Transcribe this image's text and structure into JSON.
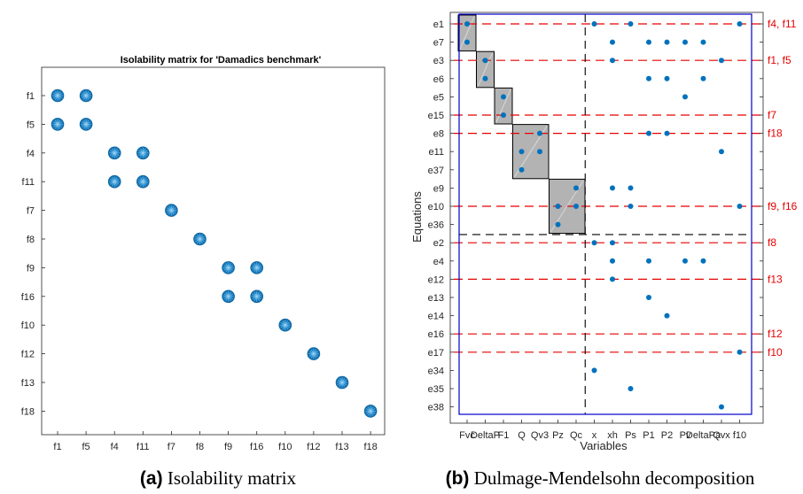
{
  "chart_data": [
    {
      "type": "scatter",
      "title": "Isolability matrix for 'Damadics benchmark'",
      "x_categories": [
        "f1",
        "f5",
        "f4",
        "f11",
        "f7",
        "f8",
        "f9",
        "f16",
        "f10",
        "f12",
        "f13",
        "f18"
      ],
      "y_categories": [
        "f1",
        "f5",
        "f4",
        "f11",
        "f7",
        "f8",
        "f9",
        "f16",
        "f10",
        "f12",
        "f13",
        "f18"
      ],
      "points": [
        [
          "f1",
          "f1"
        ],
        [
          "f5",
          "f1"
        ],
        [
          "f1",
          "f5"
        ],
        [
          "f5",
          "f5"
        ],
        [
          "f4",
          "f4"
        ],
        [
          "f11",
          "f4"
        ],
        [
          "f4",
          "f11"
        ],
        [
          "f11",
          "f11"
        ],
        [
          "f7",
          "f7"
        ],
        [
          "f8",
          "f8"
        ],
        [
          "f9",
          "f9"
        ],
        [
          "f16",
          "f9"
        ],
        [
          "f9",
          "f16"
        ],
        [
          "f16",
          "f16"
        ],
        [
          "f10",
          "f10"
        ],
        [
          "f12",
          "f12"
        ],
        [
          "f13",
          "f13"
        ],
        [
          "f18",
          "f18"
        ]
      ],
      "caption_label": "(a)",
      "caption_text": " Isolability matrix"
    },
    {
      "type": "scatter",
      "xlabel": "Variables",
      "ylabel": "Equations",
      "x_tick_labels": [
        "Fvc",
        "DeltaP",
        "F1",
        "Q",
        "Qv3",
        "Pz",
        "Qc",
        "x",
        "xh",
        "Ps",
        "P1",
        "P2",
        "Pv",
        "DeltaPa",
        "Qvx",
        "f10"
      ],
      "y_categories": [
        "e1",
        "e7",
        "e3",
        "e6",
        "e5",
        "e15",
        "e8",
        "e11",
        "e37",
        "e9",
        "e10",
        "e36",
        "e2",
        "e4",
        "e12",
        "e13",
        "e14",
        "e16",
        "e17",
        "e34",
        "e35",
        "e38"
      ],
      "points": [
        [
          0,
          "e1"
        ],
        [
          7,
          "e1"
        ],
        [
          9,
          "e1"
        ],
        [
          15,
          "e1"
        ],
        [
          0,
          "e7"
        ],
        [
          8,
          "e7"
        ],
        [
          10,
          "e7"
        ],
        [
          11,
          "e7"
        ],
        [
          12,
          "e7"
        ],
        [
          13,
          "e7"
        ],
        [
          1,
          "e3"
        ],
        [
          8,
          "e3"
        ],
        [
          14,
          "e3"
        ],
        [
          1,
          "e6"
        ],
        [
          10,
          "e6"
        ],
        [
          11,
          "e6"
        ],
        [
          13,
          "e6"
        ],
        [
          2,
          "e5"
        ],
        [
          12,
          "e5"
        ],
        [
          2,
          "e15"
        ],
        [
          4,
          "e8"
        ],
        [
          10,
          "e8"
        ],
        [
          11,
          "e8"
        ],
        [
          3,
          "e11"
        ],
        [
          4,
          "e11"
        ],
        [
          14,
          "e11"
        ],
        [
          3,
          "e37"
        ],
        [
          6,
          "e9"
        ],
        [
          8,
          "e9"
        ],
        [
          9,
          "e9"
        ],
        [
          5,
          "e10"
        ],
        [
          6,
          "e10"
        ],
        [
          9,
          "e10"
        ],
        [
          15,
          "e10"
        ],
        [
          5,
          "e36"
        ],
        [
          7,
          "e2"
        ],
        [
          8,
          "e2"
        ],
        [
          8,
          "e4"
        ],
        [
          10,
          "e4"
        ],
        [
          12,
          "e4"
        ],
        [
          13,
          "e4"
        ],
        [
          8,
          "e12"
        ],
        [
          10,
          "e13"
        ],
        [
          11,
          "e14"
        ],
        [
          15,
          "e17"
        ],
        [
          7,
          "e34"
        ],
        [
          9,
          "e35"
        ],
        [
          14,
          "e38"
        ]
      ],
      "blocks": [
        {
          "cols": [
            0,
            0
          ],
          "rows": [
            "e1",
            "e7"
          ]
        },
        {
          "cols": [
            1,
            1
          ],
          "rows": [
            "e3",
            "e6"
          ]
        },
        {
          "cols": [
            2,
            2
          ],
          "rows": [
            "e5",
            "e15"
          ]
        },
        {
          "cols": [
            3,
            4
          ],
          "rows": [
            "e8",
            "e37"
          ]
        },
        {
          "cols": [
            5,
            6
          ],
          "rows": [
            "e9",
            "e36"
          ]
        }
      ],
      "fault_lines": [
        {
          "row": "e1",
          "label": "f4, f11"
        },
        {
          "row": "e3",
          "label": "f1, f5"
        },
        {
          "row": "e15",
          "label": "f7"
        },
        {
          "row": "e8",
          "label": "f18"
        },
        {
          "row": "e10",
          "label": "f9, f16"
        },
        {
          "row": "e2",
          "label": "f8"
        },
        {
          "row": "e12",
          "label": "f13"
        },
        {
          "row": "e16",
          "label": "f12"
        },
        {
          "row": "e17",
          "label": "f10"
        }
      ],
      "colors": {
        "point": "#0072bd",
        "block": "#b3b3b3",
        "fault_line": "#e60000",
        "frame": "#0000cc"
      },
      "caption_label": "(b)",
      "caption_text": " Dulmage-Mendelsohn decomposition"
    }
  ]
}
